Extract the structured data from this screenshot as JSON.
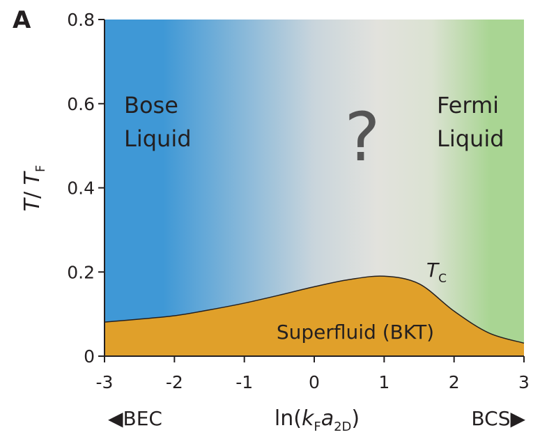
{
  "chart_data": {
    "type": "area",
    "panel_label": "A",
    "xlabel": [
      "ln(",
      "k",
      "F",
      "a",
      "2D",
      ")"
    ],
    "ylabel": [
      "T",
      "/ ",
      "T",
      "F"
    ],
    "x": [
      -3,
      -2.5,
      -2,
      -1.5,
      -1,
      -0.5,
      0,
      0.5,
      1,
      1.5,
      2,
      2.5,
      3
    ],
    "series": [
      {
        "name": [
          "T",
          "C"
        ],
        "color": "#e0a02a",
        "values": [
          0.081,
          0.088,
          0.096,
          0.11,
          0.126,
          0.145,
          0.165,
          0.182,
          0.19,
          0.172,
          0.107,
          0.055,
          0.031
        ]
      }
    ],
    "xlim": [
      -3,
      3
    ],
    "ylim": [
      0,
      0.8
    ],
    "xticks": [
      -3,
      -2,
      -1,
      0,
      1,
      2,
      3
    ],
    "yticks": [
      0,
      0.2,
      0.4,
      0.6,
      0.8
    ],
    "regions": {
      "bose": [
        "Bose",
        "Liquid"
      ],
      "unknown": "?",
      "fermi": [
        "Fermi",
        "Liquid"
      ],
      "superfluid": "Superfluid (BKT)"
    },
    "ends": {
      "left": "◀BEC",
      "right": "BCS▶"
    }
  }
}
